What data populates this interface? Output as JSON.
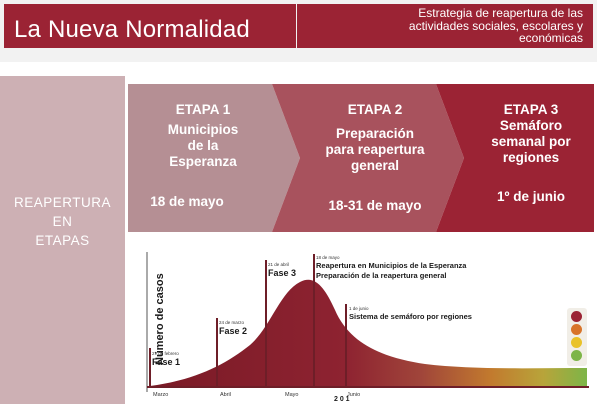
{
  "header": {
    "title": "La Nueva Normalidad",
    "subtitle_lines": [
      "Estrategia de reapertura de las",
      "actividades sociales, escolares y",
      "económicas"
    ]
  },
  "left_panel": {
    "lines": [
      "REAPERTURA",
      "EN",
      "ETAPAS"
    ]
  },
  "stages": [
    {
      "name": "ETAPA 1",
      "lines": [
        "Municipios",
        "de la",
        "Esperanza"
      ],
      "date": "18 de mayo"
    },
    {
      "name": "ETAPA 2",
      "lines": [
        "Preparación",
        "para reapertura",
        "general"
      ],
      "date": "18-31 de mayo"
    },
    {
      "name": "ETAPA 3",
      "lines": [
        "Semáforo",
        "semanal por",
        "regiones"
      ],
      "date": "1º de junio"
    }
  ],
  "chart": {
    "ylabel": "Número de casos",
    "markers": [
      {
        "date": "27 de febrero",
        "label": "Fase 1"
      },
      {
        "date": "24 de marzo",
        "label": "Fase 2"
      },
      {
        "date": "21 de abril",
        "label": "Fase 3"
      },
      {
        "date": "18 de mayo",
        "lines": [
          "Reapertura en Municipios de la Esperanza",
          "Preparación de la reapertura general"
        ]
      },
      {
        "date": "1 de junio",
        "lines": [
          "Sistema de semáforo por regiones"
        ]
      }
    ],
    "months": [
      "Marzo",
      "Abril",
      "Mayo",
      "Junio"
    ],
    "stray_text": "2 0 1"
  },
  "colors": {
    "brand": "#9b2334",
    "stage1": "#b58f94",
    "stage2": "#a8525d",
    "stage3": "#9b2334",
    "traffic": [
      "#9b2334",
      "#d8742a",
      "#e9c229",
      "#7db548"
    ]
  }
}
